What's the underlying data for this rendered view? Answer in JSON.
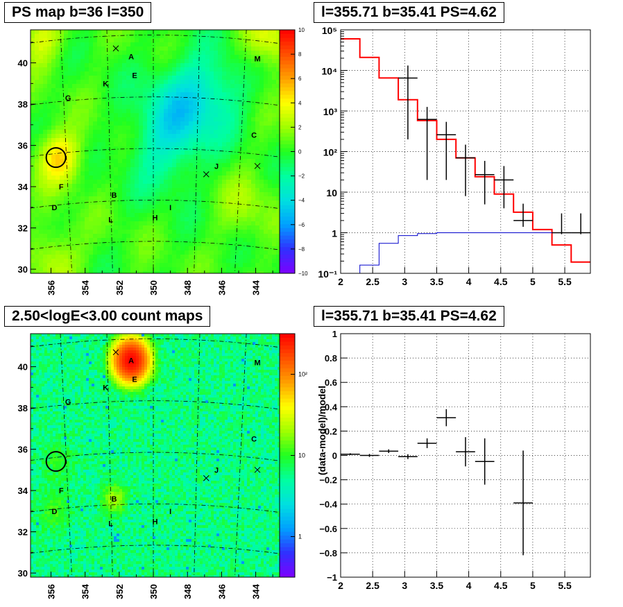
{
  "panels": {
    "psmap": {
      "title": "PS map b=36 l=350"
    },
    "spectrum": {
      "title": "l=355.71 b=35.41 PS=4.62"
    },
    "countmap": {
      "title": "2.50<logE<3.00 count maps"
    },
    "residual": {
      "title": "l=355.71 b=35.41 PS=4.62"
    }
  },
  "chart_data": [
    {
      "type": "heatmap",
      "title": "PS map b=36 l=350",
      "x_ticks": [
        "356",
        "354",
        "352",
        "350",
        "348",
        "346",
        "344"
      ],
      "y_ticks": [
        "30",
        "32",
        "34",
        "36",
        "38",
        "40"
      ],
      "xlim": [
        357.2,
        342.6
      ],
      "ylim": [
        29.8,
        41.6
      ],
      "colorbar": {
        "min": -10,
        "max": 10,
        "ticks": [
          "10",
          "8",
          "6",
          "4",
          "2",
          "0",
          "−2",
          "−4",
          "−6",
          "−8",
          "−10"
        ]
      },
      "color_scale": [
        "#7f00ff",
        "#3030ff",
        "#00a0ff",
        "#00e0e0",
        "#00ffa0",
        "#20ff20",
        "#a0ff00",
        "#ffff00",
        "#ffa000",
        "#ff5000",
        "#ff0000"
      ],
      "background_value": 0.3,
      "sources": [
        {
          "label": "A",
          "l": 351.3,
          "b": 40.3
        },
        {
          "label": "M",
          "l": 343.9,
          "b": 40.2
        },
        {
          "label": "E",
          "l": 351.1,
          "b": 39.4
        },
        {
          "label": "K",
          "l": 352.8,
          "b": 39.0
        },
        {
          "label": "G",
          "l": 355.0,
          "b": 38.3
        },
        {
          "label": "C",
          "l": 344.1,
          "b": 36.5
        },
        {
          "label": "J",
          "l": 346.3,
          "b": 35.0
        },
        {
          "label": "F",
          "l": 355.4,
          "b": 34.0
        },
        {
          "label": "B",
          "l": 352.3,
          "b": 33.6
        },
        {
          "label": "D",
          "l": 355.8,
          "b": 33.0
        },
        {
          "label": "I",
          "l": 349.0,
          "b": 33.0
        },
        {
          "label": "H",
          "l": 349.9,
          "b": 32.5
        },
        {
          "label": "L",
          "l": 352.5,
          "b": 32.4
        }
      ],
      "x_markers": [
        {
          "l": 352.2,
          "b": 40.7
        },
        {
          "l": 346.9,
          "b": 34.6
        },
        {
          "l": 343.9,
          "b": 35.0
        }
      ],
      "circle_marker": {
        "l": 355.71,
        "b": 35.41
      },
      "blobs": [
        {
          "l": 355.5,
          "b": 35.4,
          "value": 4.5,
          "sigma": 0.9
        },
        {
          "l": 356.6,
          "b": 41.2,
          "value": 3,
          "sigma": 0.9
        },
        {
          "l": 343.4,
          "b": 41.2,
          "value": 3.5,
          "sigma": 1.0
        },
        {
          "l": 355.8,
          "b": 30.5,
          "value": 2.5,
          "sigma": 1.0
        },
        {
          "l": 348.5,
          "b": 37.5,
          "value": -3.5,
          "sigma": 1.6
        },
        {
          "l": 346.5,
          "b": 38.8,
          "value": -2.5,
          "sigma": 1.4
        },
        {
          "l": 349.5,
          "b": 35.5,
          "value": -1.8,
          "sigma": 1.4
        },
        {
          "l": 344.5,
          "b": 33.0,
          "value": 1.5,
          "sigma": 1.2
        }
      ]
    },
    {
      "type": "line",
      "title": "l=355.71 b=35.41 PS=4.62",
      "xlim": [
        2,
        5.9
      ],
      "ylim": [
        0.1,
        100000
      ],
      "y_scale": "log",
      "grid": true,
      "x_ticks": [
        "2",
        "2.5",
        "3",
        "3.5",
        "4",
        "4.5",
        "5",
        "5.5"
      ],
      "y_ticks": [
        "10⁻¹",
        "1",
        "10",
        "10²",
        "10³",
        "10⁴",
        "10⁵"
      ],
      "bin_edges": [
        2,
        2.3,
        2.6,
        2.9,
        3.2,
        3.5,
        3.8,
        4.1,
        4.4,
        4.7,
        5.0,
        5.3,
        5.6,
        5.9
      ],
      "series": [
        {
          "kind": "step",
          "color": "#ff0000",
          "values": [
            60000,
            21000,
            6500,
            1900,
            580,
            200,
            70,
            24,
            9,
            3.2,
            1.2,
            0.5,
            0.19
          ]
        },
        {
          "kind": "step",
          "color": "#0000cc",
          "values": [
            0.1,
            0.16,
            0.55,
            0.85,
            0.95,
            1.0,
            1.0,
            1.0,
            1.0,
            1.0,
            1.0,
            1.0,
            1.0
          ]
        },
        {
          "kind": "points",
          "color": "#000000",
          "x": [
            3.05,
            3.35,
            3.65,
            3.95,
            4.25,
            4.55,
            4.85,
            5.45,
            5.75
          ],
          "values": [
            6500,
            620,
            260,
            70,
            27,
            20,
            2.0,
            1.0,
            1.0
          ],
          "err_lo": [
            6300,
            600,
            240,
            62,
            22,
            16,
            0.6,
            0.08,
            0.08
          ],
          "err_hi": [
            6700,
            640,
            280,
            78,
            32,
            24,
            3.2,
            2.0,
            2.0
          ],
          "xerr": 0.15
        }
      ]
    },
    {
      "type": "heatmap",
      "title": "2.50<logE<3.00 count maps",
      "x_ticks": [
        "356",
        "354",
        "352",
        "350",
        "348",
        "346",
        "344"
      ],
      "y_ticks": [
        "30",
        "32",
        "34",
        "36",
        "38",
        "40"
      ],
      "xlim": [
        357.2,
        342.6
      ],
      "ylim": [
        29.8,
        41.6
      ],
      "colorbar": {
        "scale": "log",
        "ticks": [
          "10²",
          "10",
          "1"
        ]
      },
      "color_scale": [
        "#7f00ff",
        "#3030ff",
        "#00a0ff",
        "#00e0e0",
        "#00ffa0",
        "#20ff20",
        "#a0ff00",
        "#ffff00",
        "#ffa000",
        "#ff5000",
        "#ff0000"
      ],
      "sources": [
        {
          "label": "A",
          "l": 351.3,
          "b": 40.3
        },
        {
          "label": "M",
          "l": 343.9,
          "b": 40.2
        },
        {
          "label": "E",
          "l": 351.1,
          "b": 39.4
        },
        {
          "label": "K",
          "l": 352.8,
          "b": 39.0
        },
        {
          "label": "G",
          "l": 355.0,
          "b": 38.3
        },
        {
          "label": "C",
          "l": 344.1,
          "b": 36.5
        },
        {
          "label": "J",
          "l": 346.3,
          "b": 35.0
        },
        {
          "label": "F",
          "l": 355.4,
          "b": 34.0
        },
        {
          "label": "B",
          "l": 352.3,
          "b": 33.6
        },
        {
          "label": "D",
          "l": 355.8,
          "b": 33.0
        },
        {
          "label": "I",
          "l": 349.0,
          "b": 33.0
        },
        {
          "label": "H",
          "l": 349.9,
          "b": 32.5
        },
        {
          "label": "L",
          "l": 352.5,
          "b": 32.4
        }
      ],
      "x_markers": [
        {
          "l": 352.2,
          "b": 40.7
        },
        {
          "l": 346.9,
          "b": 34.6
        },
        {
          "l": 343.9,
          "b": 35.0
        }
      ],
      "circle_marker": {
        "l": 355.71,
        "b": 35.41
      },
      "background_counts": 6,
      "blobs": [
        {
          "l": 351.3,
          "b": 40.3,
          "value": 300,
          "sigma": 0.55
        },
        {
          "l": 352.3,
          "b": 33.6,
          "value": 14,
          "sigma": 0.45
        },
        {
          "l": 355.8,
          "b": 33.0,
          "value": 6,
          "sigma": 0.6
        },
        {
          "l": 355.5,
          "b": 35.4,
          "value": 4,
          "sigma": 0.7
        }
      ]
    },
    {
      "type": "scatter",
      "title": "l=355.71 b=35.41 PS=4.62",
      "ylabel": "(data-model)/model",
      "xlim": [
        2,
        5.9
      ],
      "ylim": [
        -1,
        1
      ],
      "grid": true,
      "x_ticks": [
        "2",
        "2.5",
        "3",
        "3.5",
        "4",
        "4.5",
        "5",
        "5.5"
      ],
      "y_ticks": [
        "−1",
        "−0.8",
        "−0.6",
        "−0.4",
        "−0.2",
        "0",
        "0.2",
        "0.4",
        "0.6",
        "0.8",
        "1"
      ],
      "points": {
        "x": [
          2.15,
          2.45,
          2.75,
          3.05,
          3.35,
          3.65,
          3.95,
          4.25,
          4.85
        ],
        "values": [
          0.01,
          0.0,
          0.035,
          -0.01,
          0.1,
          0.31,
          0.03,
          -0.05,
          -0.39
        ],
        "err": [
          0.008,
          0.012,
          0.015,
          0.02,
          0.04,
          0.07,
          0.12,
          0.19,
          0.43
        ],
        "xerr": 0.15
      }
    }
  ]
}
